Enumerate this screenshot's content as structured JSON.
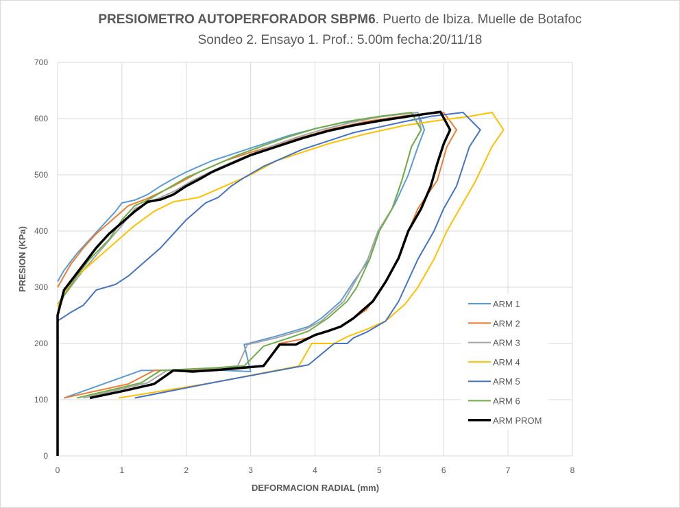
{
  "chart_data": {
    "type": "line",
    "title_bold": "PRESIOMETRO AUTOPERFORADOR SBPM6",
    "title_rest": ". Puerto de Ibiza. Muelle de Botafoc",
    "subtitle": "Sondeo 2. Ensayo 1. Prof.: 5.00m fecha:20/11/18",
    "xlabel": "DEFORMACION RADIAL (mm)",
    "ylabel": "PRESION (KPa)",
    "xlim": [
      0,
      8
    ],
    "ylim": [
      0,
      700
    ],
    "xticks": [
      "0",
      "1",
      "2",
      "3",
      "4",
      "5",
      "6",
      "7",
      "8"
    ],
    "yticks": [
      "0",
      "100",
      "200",
      "300",
      "400",
      "500",
      "600",
      "700"
    ],
    "grid": true,
    "legend_position": "right",
    "series": [
      {
        "name": "ARM 1",
        "color": "#5B9BD5",
        "width": 2,
        "points": [
          [
            0,
            310
          ],
          [
            0.1,
            330
          ],
          [
            0.3,
            360
          ],
          [
            0.5,
            385
          ],
          [
            0.7,
            410
          ],
          [
            0.9,
            435
          ],
          [
            1.0,
            450
          ],
          [
            1.2,
            455
          ],
          [
            1.4,
            465
          ],
          [
            1.6,
            480
          ],
          [
            1.8,
            493
          ],
          [
            2.0,
            505
          ],
          [
            2.2,
            515
          ],
          [
            2.4,
            525
          ],
          [
            2.8,
            540
          ],
          [
            3.2,
            555
          ],
          [
            3.6,
            570
          ],
          [
            4.0,
            582
          ],
          [
            4.4,
            592
          ],
          [
            4.8,
            600
          ],
          [
            5.2,
            606
          ],
          [
            5.6,
            611
          ],
          [
            5.7,
            580
          ],
          [
            5.6,
            550
          ],
          [
            5.45,
            500
          ],
          [
            5.25,
            450
          ],
          [
            5.0,
            400
          ],
          [
            4.85,
            350
          ],
          [
            4.6,
            310
          ],
          [
            4.4,
            275
          ],
          [
            4.1,
            245
          ],
          [
            3.9,
            230
          ],
          [
            3.4,
            213
          ],
          [
            2.9,
            198
          ],
          [
            3.0,
            150
          ],
          [
            2.4,
            153
          ],
          [
            1.3,
            152
          ],
          [
            0.1,
            103
          ]
        ]
      },
      {
        "name": "ARM 2",
        "color": "#ED7D31",
        "width": 2,
        "points": [
          [
            0,
            300
          ],
          [
            0.2,
            340
          ],
          [
            0.4,
            370
          ],
          [
            0.6,
            395
          ],
          [
            0.9,
            425
          ],
          [
            1.1,
            445
          ],
          [
            1.4,
            458
          ],
          [
            1.8,
            480
          ],
          [
            2.2,
            505
          ],
          [
            2.6,
            525
          ],
          [
            3.0,
            540
          ],
          [
            3.6,
            560
          ],
          [
            4.2,
            580
          ],
          [
            4.8,
            595
          ],
          [
            5.4,
            605
          ],
          [
            6.0,
            611
          ],
          [
            6.2,
            580
          ],
          [
            6.05,
            550
          ],
          [
            5.9,
            490
          ],
          [
            5.6,
            440
          ],
          [
            5.45,
            400
          ],
          [
            5.3,
            350
          ],
          [
            5.1,
            310
          ],
          [
            4.8,
            260
          ],
          [
            4.4,
            230
          ],
          [
            3.9,
            210
          ],
          [
            3.45,
            200
          ],
          [
            3.2,
            160
          ],
          [
            2.8,
            155
          ],
          [
            1.5,
            152
          ],
          [
            1.1,
            128
          ],
          [
            0.1,
            103
          ]
        ]
      },
      {
        "name": "ARM 3",
        "color": "#A5A5A5",
        "width": 2,
        "points": [
          [
            0,
            270
          ],
          [
            0.2,
            300
          ],
          [
            0.4,
            330
          ],
          [
            0.7,
            370
          ],
          [
            1.0,
            410
          ],
          [
            1.2,
            440
          ],
          [
            1.5,
            455
          ],
          [
            1.8,
            470
          ],
          [
            2.1,
            490
          ],
          [
            2.5,
            512
          ],
          [
            2.9,
            532
          ],
          [
            3.3,
            550
          ],
          [
            3.7,
            566
          ],
          [
            4.1,
            580
          ],
          [
            4.6,
            594
          ],
          [
            5.1,
            605
          ],
          [
            5.6,
            611
          ],
          [
            5.65,
            580
          ],
          [
            5.5,
            550
          ],
          [
            5.35,
            490
          ],
          [
            5.2,
            440
          ],
          [
            4.98,
            400
          ],
          [
            4.82,
            350
          ],
          [
            4.6,
            305
          ],
          [
            4.45,
            275
          ],
          [
            4.1,
            240
          ],
          [
            3.85,
            225
          ],
          [
            3.4,
            210
          ],
          [
            2.95,
            198
          ],
          [
            2.8,
            160
          ],
          [
            2.3,
            155
          ],
          [
            1.7,
            152
          ],
          [
            1.4,
            130
          ],
          [
            0.4,
            103
          ]
        ]
      },
      {
        "name": "ARM 4",
        "color": "#FFC000",
        "width": 2,
        "points": [
          [
            0,
            265
          ],
          [
            0.1,
            290
          ],
          [
            0.3,
            320
          ],
          [
            0.6,
            350
          ],
          [
            0.9,
            380
          ],
          [
            1.2,
            410
          ],
          [
            1.5,
            435
          ],
          [
            1.8,
            452
          ],
          [
            2.2,
            460
          ],
          [
            2.6,
            480
          ],
          [
            3.0,
            500
          ],
          [
            3.4,
            525
          ],
          [
            3.8,
            540
          ],
          [
            4.2,
            555
          ],
          [
            4.8,
            573
          ],
          [
            5.4,
            588
          ],
          [
            6.0,
            598
          ],
          [
            6.4,
            604
          ],
          [
            6.75,
            611
          ],
          [
            6.93,
            580
          ],
          [
            6.75,
            550
          ],
          [
            6.5,
            490
          ],
          [
            6.25,
            440
          ],
          [
            6.05,
            400
          ],
          [
            5.85,
            350
          ],
          [
            5.6,
            300
          ],
          [
            5.4,
            270
          ],
          [
            5.1,
            240
          ],
          [
            4.8,
            225
          ],
          [
            4.5,
            212
          ],
          [
            4.3,
            200
          ],
          [
            3.95,
            200
          ],
          [
            3.75,
            160
          ],
          [
            2.4,
            130
          ],
          [
            1.6,
            115
          ],
          [
            0.95,
            103
          ]
        ]
      },
      {
        "name": "ARM 5",
        "color": "#4472C4",
        "width": 2,
        "points": [
          [
            0,
            240
          ],
          [
            0.2,
            255
          ],
          [
            0.4,
            268
          ],
          [
            0.6,
            295
          ],
          [
            0.9,
            305
          ],
          [
            1.1,
            320
          ],
          [
            1.3,
            340
          ],
          [
            1.6,
            370
          ],
          [
            1.8,
            395
          ],
          [
            2.0,
            420
          ],
          [
            2.3,
            450
          ],
          [
            2.5,
            460
          ],
          [
            2.7,
            480
          ],
          [
            2.9,
            495
          ],
          [
            3.2,
            515
          ],
          [
            3.5,
            530
          ],
          [
            3.8,
            545
          ],
          [
            4.2,
            560
          ],
          [
            4.6,
            575
          ],
          [
            5.0,
            585
          ],
          [
            5.4,
            595
          ],
          [
            5.8,
            604
          ],
          [
            6.3,
            611
          ],
          [
            6.57,
            580
          ],
          [
            6.4,
            550
          ],
          [
            6.2,
            480
          ],
          [
            6.0,
            440
          ],
          [
            5.85,
            400
          ],
          [
            5.6,
            350
          ],
          [
            5.3,
            275
          ],
          [
            5.1,
            240
          ],
          [
            4.8,
            220
          ],
          [
            4.6,
            210
          ],
          [
            4.5,
            200
          ],
          [
            4.3,
            200
          ],
          [
            3.9,
            162
          ],
          [
            2.4,
            130
          ],
          [
            1.2,
            103
          ]
        ]
      },
      {
        "name": "ARM 6",
        "color": "#70AD47",
        "width": 2,
        "points": [
          [
            0,
            255
          ],
          [
            0.1,
            285
          ],
          [
            0.3,
            320
          ],
          [
            0.5,
            350
          ],
          [
            0.8,
            385
          ],
          [
            1.0,
            420
          ],
          [
            1.2,
            445
          ],
          [
            1.4,
            455
          ],
          [
            1.7,
            475
          ],
          [
            2.0,
            495
          ],
          [
            2.4,
            515
          ],
          [
            2.8,
            535
          ],
          [
            3.2,
            552
          ],
          [
            3.6,
            568
          ],
          [
            4.0,
            582
          ],
          [
            4.5,
            595
          ],
          [
            5.0,
            604
          ],
          [
            5.5,
            611
          ],
          [
            5.65,
            580
          ],
          [
            5.5,
            550
          ],
          [
            5.35,
            490
          ],
          [
            5.2,
            440
          ],
          [
            5.0,
            400
          ],
          [
            4.85,
            350
          ],
          [
            4.65,
            300
          ],
          [
            4.5,
            275
          ],
          [
            4.2,
            245
          ],
          [
            3.9,
            222
          ],
          [
            3.6,
            210
          ],
          [
            3.2,
            195
          ],
          [
            2.9,
            160
          ],
          [
            2.5,
            157
          ],
          [
            1.6,
            152
          ],
          [
            1.3,
            130
          ],
          [
            0.3,
            103
          ]
        ]
      },
      {
        "name": "ARM PROM",
        "color": "#000000",
        "width": 3.5,
        "points": [
          [
            0,
            0
          ],
          [
            0,
            250
          ],
          [
            0.1,
            295
          ],
          [
            0.2,
            310
          ],
          [
            0.4,
            340
          ],
          [
            0.6,
            370
          ],
          [
            0.8,
            395
          ],
          [
            1.0,
            415
          ],
          [
            1.2,
            435
          ],
          [
            1.4,
            452
          ],
          [
            1.6,
            456
          ],
          [
            1.8,
            465
          ],
          [
            2.0,
            480
          ],
          [
            2.2,
            492
          ],
          [
            2.4,
            505
          ],
          [
            2.6,
            515
          ],
          [
            2.8,
            525
          ],
          [
            3.0,
            535
          ],
          [
            3.4,
            550
          ],
          [
            3.8,
            565
          ],
          [
            4.2,
            578
          ],
          [
            4.6,
            588
          ],
          [
            5.0,
            596
          ],
          [
            5.4,
            603
          ],
          [
            5.7,
            608
          ],
          [
            5.95,
            612
          ],
          [
            6.1,
            580
          ],
          [
            6.0,
            555
          ],
          [
            5.9,
            520
          ],
          [
            5.8,
            480
          ],
          [
            5.65,
            440
          ],
          [
            5.45,
            400
          ],
          [
            5.3,
            352
          ],
          [
            5.1,
            310
          ],
          [
            4.9,
            275
          ],
          [
            4.6,
            245
          ],
          [
            4.4,
            230
          ],
          [
            4.2,
            222
          ],
          [
            4.0,
            215
          ],
          [
            3.7,
            198
          ],
          [
            3.45,
            198
          ],
          [
            3.2,
            160
          ],
          [
            2.9,
            157
          ],
          [
            2.5,
            153
          ],
          [
            2.1,
            150
          ],
          [
            1.8,
            152
          ],
          [
            1.5,
            128
          ],
          [
            1.0,
            115
          ],
          [
            0.5,
            103
          ]
        ]
      }
    ]
  }
}
